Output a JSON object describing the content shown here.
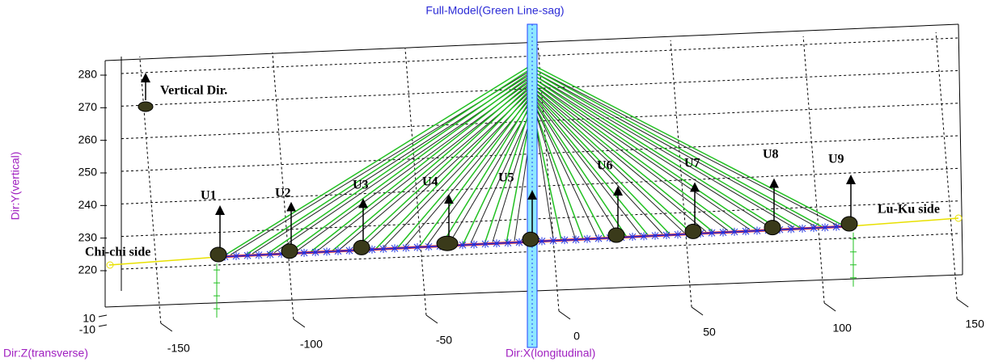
{
  "chart_data": {
    "type": "line3d",
    "title": "Full-Model(Green Line-sag)",
    "xlabel": "Dir:X(longitudinal)",
    "ylabel": "Dir:Y(vertical)",
    "zlabel": "Dir:Z(transverse)",
    "xlim": [
      -160,
      160
    ],
    "xticks": [
      -150,
      -100,
      -50,
      0,
      50,
      100,
      150
    ],
    "ylim": [
      215,
      285
    ],
    "yticks": [
      220,
      230,
      240,
      250,
      260,
      270,
      280
    ],
    "zticks": [
      10,
      -10
    ],
    "grid": true,
    "sensors": [
      "U1",
      "U2",
      "U3",
      "U4",
      "U5",
      "U6",
      "U7",
      "U8",
      "U9"
    ],
    "annotations": [
      "Vertical Dir.",
      "Chi-chi side",
      "Lu-Ku side"
    ]
  }
}
